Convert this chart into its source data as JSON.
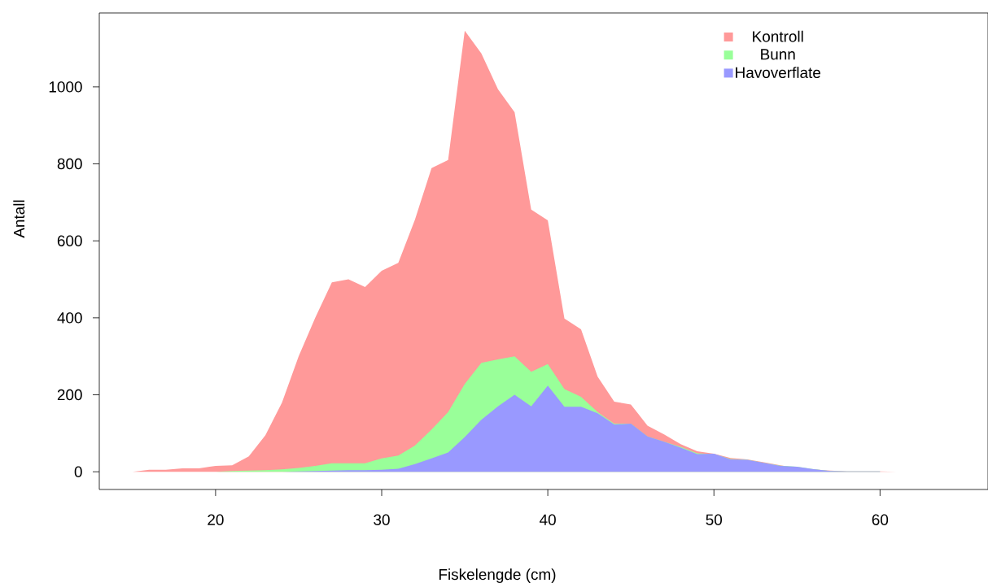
{
  "chart_data": {
    "type": "area",
    "xlabel": "Fiskelengde (cm)",
    "ylabel": "Antall",
    "xlim": [
      13,
      66.5
    ],
    "ylim": [
      -46,
      1192
    ],
    "xticks": [
      20,
      30,
      40,
      50,
      60
    ],
    "yticks": [
      0,
      200,
      400,
      600,
      800,
      1000
    ],
    "legend": "top right",
    "grid": false,
    "series": [
      {
        "name": "Kontroll",
        "color": "#ff9999",
        "x": [
          13,
          14,
          15,
          16,
          17,
          18,
          19,
          20,
          21,
          22,
          23,
          24,
          25,
          26,
          27,
          28,
          29,
          30,
          31,
          32,
          33,
          34,
          35,
          36,
          37,
          38,
          39,
          40,
          41,
          42,
          43,
          44,
          45,
          46,
          47,
          48,
          49,
          50,
          51,
          52,
          53,
          54,
          55,
          56,
          57,
          58,
          59,
          60,
          61,
          62,
          63,
          64,
          65,
          66
        ],
        "values": [
          0,
          0,
          0,
          5,
          5,
          9,
          9,
          15,
          17,
          40,
          95,
          180,
          300,
          400,
          492,
          500,
          480,
          522,
          543,
          655,
          789,
          810,
          1146,
          1087,
          994,
          934,
          681,
          653,
          398,
          370,
          247,
          182,
          175,
          120,
          97,
          72,
          53,
          47,
          36,
          32,
          25,
          17,
          10,
          6,
          3,
          1,
          1,
          1,
          0,
          0,
          0,
          0,
          0,
          0
        ]
      },
      {
        "name": "Bunn",
        "color": "#99ff99",
        "x": [
          20,
          21,
          22,
          23,
          24,
          25,
          26,
          27,
          28,
          29,
          30,
          31,
          32,
          33,
          34,
          35,
          36,
          37,
          38,
          39,
          40,
          41,
          42,
          43,
          44,
          45,
          46,
          47,
          48,
          49,
          50,
          51,
          52,
          53,
          54,
          55,
          56,
          57,
          58,
          59,
          60
        ],
        "values": [
          0,
          2,
          3,
          4,
          6,
          10,
          15,
          22,
          22,
          22,
          35,
          42,
          68,
          110,
          155,
          228,
          283,
          292,
          300,
          260,
          280,
          215,
          195,
          155,
          125,
          125,
          92,
          78,
          65,
          48,
          46,
          33,
          31,
          23,
          16,
          13,
          7,
          2,
          1,
          1,
          1
        ]
      },
      {
        "name": "Havoverflate",
        "color": "#9999ff",
        "x": [
          24,
          25,
          26,
          27,
          28,
          29,
          30,
          31,
          32,
          33,
          34,
          35,
          36,
          37,
          38,
          39,
          40,
          41,
          42,
          43,
          44,
          45,
          46,
          47,
          48,
          49,
          50,
          51,
          52,
          53,
          54,
          55,
          56,
          57,
          58,
          59,
          60
        ],
        "values": [
          0,
          1,
          2,
          3,
          4,
          4,
          5,
          8,
          20,
          35,
          50,
          90,
          135,
          170,
          200,
          170,
          224,
          169,
          169,
          152,
          123,
          125,
          92,
          78,
          63,
          46,
          47,
          32,
          31,
          23,
          15,
          13,
          7,
          2,
          1,
          1,
          1
        ]
      }
    ]
  }
}
